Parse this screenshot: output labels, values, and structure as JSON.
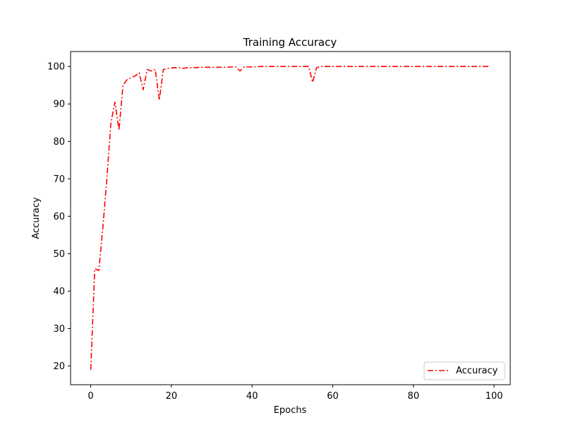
{
  "chart_data": {
    "type": "line",
    "title": "Training Accuracy",
    "xlabel": "Epochs",
    "ylabel": "Accuracy",
    "xlim": [
      -5,
      104
    ],
    "ylim": [
      15,
      104
    ],
    "xticks": [
      0,
      20,
      40,
      60,
      80,
      100
    ],
    "yticks": [
      20,
      30,
      40,
      50,
      60,
      70,
      80,
      90,
      100
    ],
    "grid": false,
    "legend_position": "lower-right",
    "series": [
      {
        "name": "Accuracy",
        "color": "#ff0000",
        "linestyle": "dashdot",
        "x": [
          0,
          1,
          2,
          3,
          4,
          5,
          6,
          7,
          8,
          9,
          10,
          11,
          12,
          13,
          14,
          15,
          16,
          17,
          18,
          19,
          20,
          21,
          22,
          23,
          24,
          25,
          26,
          27,
          28,
          29,
          30,
          31,
          32,
          33,
          34,
          35,
          36,
          37,
          38,
          39,
          40,
          41,
          42,
          43,
          44,
          45,
          46,
          47,
          48,
          49,
          50,
          51,
          52,
          53,
          54,
          55,
          56,
          57,
          58,
          59,
          60,
          61,
          62,
          63,
          64,
          65,
          66,
          67,
          68,
          69,
          70,
          71,
          72,
          73,
          74,
          75,
          76,
          77,
          78,
          79,
          80,
          81,
          82,
          83,
          84,
          85,
          86,
          87,
          88,
          89,
          90,
          91,
          92,
          93,
          94,
          95,
          96,
          97,
          98,
          99
        ],
        "y": [
          19,
          46,
          45.5,
          57,
          70,
          85,
          90.5,
          83,
          95,
          96.5,
          97,
          97.5,
          98.3,
          93.8,
          99.2,
          98.8,
          99.2,
          91,
          99.2,
          99.5,
          99.6,
          99.7,
          99.7,
          99.5,
          99.7,
          99.7,
          99.7,
          99.8,
          99.8,
          99.8,
          99.8,
          99.8,
          99.8,
          99.8,
          99.8,
          99.9,
          99.9,
          98.8,
          99.9,
          99.9,
          99.9,
          99.9,
          100,
          100,
          100,
          100,
          100,
          100,
          100,
          100,
          100,
          100,
          100,
          100,
          100,
          95.8,
          99.7,
          100,
          100,
          100,
          100,
          100,
          100,
          100,
          100,
          100,
          100,
          100,
          100,
          100,
          100,
          100,
          100,
          100,
          100,
          100,
          100,
          100,
          100,
          100,
          100,
          100,
          100,
          100,
          100,
          100,
          100,
          100,
          100,
          100,
          100,
          100,
          100,
          100,
          100,
          100,
          100,
          100,
          100,
          100
        ]
      }
    ]
  }
}
